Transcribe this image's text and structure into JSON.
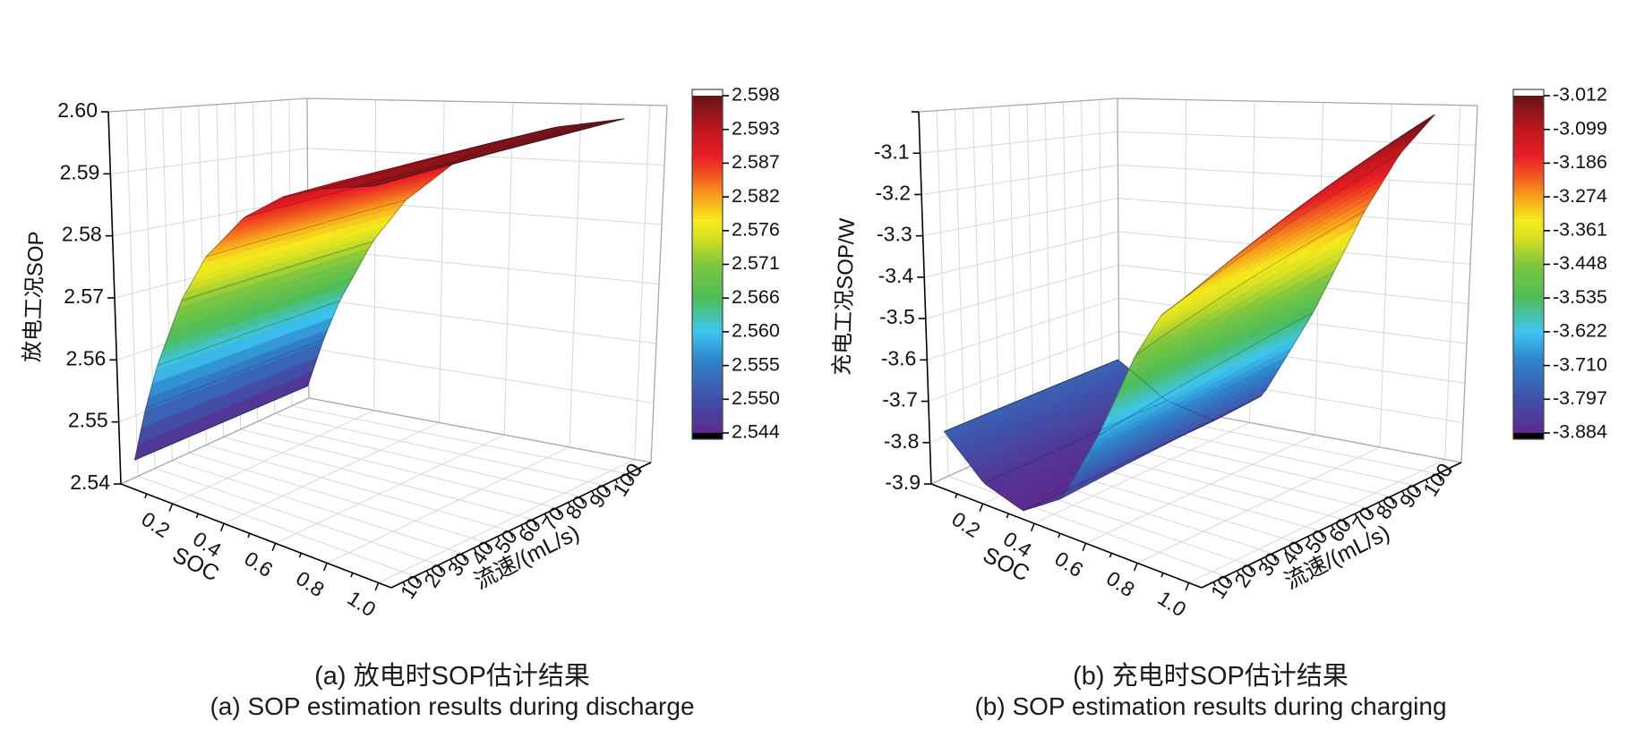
{
  "page": {
    "background": "#ffffff"
  },
  "captions": {
    "a_zh": "(a) 放电时SOP估计结果",
    "a_en": "(a) SOP estimation results during discharge",
    "b_zh": "(b) 充电时SOP估计结果",
    "b_en": "(b) SOP estimation results during charging"
  },
  "colormap": {
    "stops": [
      [
        0.0,
        "#5C2A8C"
      ],
      [
        0.1,
        "#4150A8"
      ],
      [
        0.22,
        "#2E86CC"
      ],
      [
        0.3,
        "#3EC6F0"
      ],
      [
        0.4,
        "#4DBD58"
      ],
      [
        0.5,
        "#7FC63F"
      ],
      [
        0.58,
        "#D9E021"
      ],
      [
        0.63,
        "#F5EB1E"
      ],
      [
        0.7,
        "#F8A01C"
      ],
      [
        0.76,
        "#F15A22"
      ],
      [
        0.82,
        "#E81E25"
      ],
      [
        0.9,
        "#C0161D"
      ],
      [
        1.0,
        "#64141A"
      ]
    ],
    "below_min": "#000000",
    "above_max": "#ffffff"
  },
  "chart_data": [
    {
      "id": "discharge",
      "type": "surface3d",
      "title_zh": "(a) 放电时SOP估计结果",
      "title_en": "(a) SOP estimation results during discharge",
      "z_axis": {
        "title": "放电工况SOP",
        "range": [
          2.54,
          2.6
        ],
        "major_ticks": [
          2.54,
          2.55,
          2.56,
          2.57,
          2.58,
          2.59,
          2.6
        ],
        "tick_labels": [
          "2.54",
          "2.55",
          "2.56",
          "2.57",
          "2.58",
          "2.59",
          "2.60"
        ]
      },
      "soc_axis": {
        "title": "SOC",
        "range": [
          0,
          1.05
        ],
        "major_ticks": [
          0.2,
          0.4,
          0.6,
          0.8,
          1.0
        ],
        "tick_labels": [
          "0.2",
          "0.4",
          "0.6",
          "0.8",
          "1.0"
        ],
        "minor_ticks": [
          0.1,
          0.3,
          0.5,
          0.7,
          0.9
        ]
      },
      "flow_axis": {
        "title": "流速/(mL/s)",
        "range": [
          0,
          110
        ],
        "major_ticks": [
          10,
          20,
          30,
          40,
          50,
          60,
          70,
          80,
          90,
          100
        ],
        "tick_labels": [
          "10",
          "20",
          "30",
          "40",
          "50",
          "60",
          "70",
          "80",
          "90",
          "100"
        ],
        "minor_ticks": [
          5,
          15,
          25,
          35,
          45,
          55,
          65,
          75,
          85,
          95,
          105
        ]
      },
      "colorbar": {
        "min": 2.544,
        "max": 2.598,
        "tick_labels": [
          "2.598",
          "2.593",
          "2.587",
          "2.582",
          "2.576",
          "2.571",
          "2.566",
          "2.560",
          "2.555",
          "2.550",
          "2.544"
        ]
      },
      "surface": {
        "soc": [
          0.05,
          0.1,
          0.15,
          0.25,
          0.35,
          0.5,
          0.65,
          0.8,
          1.0
        ],
        "flow": [
          1,
          25,
          50,
          75,
          100
        ],
        "z": [
          [
            2.5445,
            2.5445,
            2.5445,
            2.5445,
            2.5445
          ],
          [
            2.5535,
            2.5536,
            2.5537,
            2.5539,
            2.554
          ],
          [
            2.5609,
            2.5611,
            2.5614,
            2.5616,
            2.5619
          ],
          [
            2.5722,
            2.5726,
            2.573,
            2.5734,
            2.5738
          ],
          [
            2.58,
            2.5805,
            2.581,
            2.5816,
            2.5821
          ],
          [
            2.5873,
            2.5879,
            2.5885,
            2.5892,
            2.5898
          ],
          [
            2.5915,
            2.5922,
            2.5928,
            2.5935,
            2.5942
          ],
          [
            2.5938,
            2.5945,
            2.5952,
            2.596,
            2.5967
          ],
          [
            2.5955,
            2.5962,
            2.597,
            2.5977,
            2.5985
          ]
        ]
      }
    },
    {
      "id": "charge",
      "type": "surface3d",
      "title_zh": "(b) 充电时SOP估计结果",
      "title_en": "(b) SOP estimation results during charging",
      "z_axis": {
        "title": "充电工况SOP/W",
        "range": [
          -3.9,
          -3.0
        ],
        "major_ticks": [
          -3.9,
          -3.8,
          -3.7,
          -3.6,
          -3.5,
          -3.4,
          -3.3,
          -3.2,
          -3.1,
          -3.0
        ],
        "tick_labels": [
          "-3.9",
          "-3.8",
          "-3.7",
          "-3.6",
          "-3.5",
          "-3.4",
          "-3.3",
          "-3.2",
          "-3.1",
          ""
        ]
      },
      "soc_axis": {
        "title": "SOC",
        "range": [
          0,
          1.05
        ],
        "major_ticks": [
          0.2,
          0.4,
          0.6,
          0.8,
          1.0
        ],
        "tick_labels": [
          "0.2",
          "0.4",
          "0.6",
          "0.8",
          "1.0"
        ],
        "minor_ticks": [
          0.1,
          0.3,
          0.5,
          0.7,
          0.9
        ]
      },
      "flow_axis": {
        "title": "流速/(mL/s)",
        "range": [
          0,
          110
        ],
        "major_ticks": [
          10,
          20,
          30,
          40,
          50,
          60,
          70,
          80,
          90,
          100
        ],
        "tick_labels": [
          "10",
          "20",
          "30",
          "40",
          "50",
          "60",
          "70",
          "80",
          "90",
          "100"
        ],
        "minor_ticks": [
          5,
          15,
          25,
          35,
          45,
          55,
          65,
          75,
          85,
          95,
          105
        ]
      },
      "colorbar": {
        "min": -3.884,
        "max": -3.012,
        "tick_labels": [
          "-3.012",
          "-3.099",
          "-3.186",
          "-3.274",
          "-3.361",
          "-3.448",
          "-3.535",
          "-3.622",
          "-3.710",
          "-3.797",
          "-3.884"
        ]
      },
      "surface": {
        "soc": [
          0.05,
          0.2,
          0.35,
          0.5,
          0.65,
          0.8,
          0.9,
          1.0
        ],
        "flow": [
          1,
          25,
          50,
          75,
          100
        ],
        "z": [
          [
            -3.764,
            -3.762,
            -3.76,
            -3.758,
            -3.756
          ],
          [
            -3.854,
            -3.853,
            -3.851,
            -3.85,
            -3.848
          ],
          [
            -3.884,
            -3.883,
            -3.881,
            -3.88,
            -3.878
          ],
          [
            -3.824,
            -3.814,
            -3.804,
            -3.794,
            -3.784
          ],
          [
            -3.654,
            -3.627,
            -3.6,
            -3.572,
            -3.544
          ],
          [
            -3.454,
            -3.408,
            -3.36,
            -3.312,
            -3.264
          ],
          [
            -3.354,
            -3.296,
            -3.235,
            -3.175,
            -3.114
          ],
          [
            -3.3,
            -3.23,
            -3.157,
            -3.085,
            -3.012
          ]
        ]
      }
    }
  ]
}
